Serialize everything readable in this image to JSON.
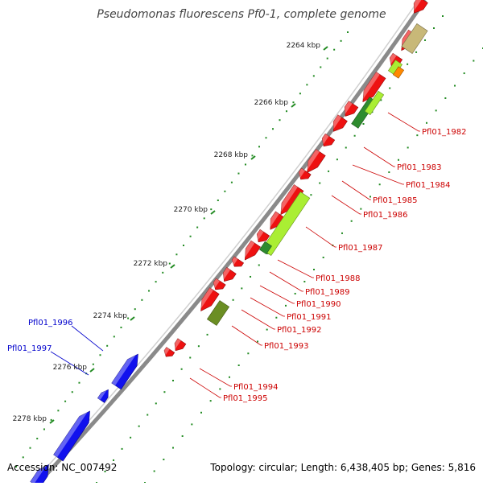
{
  "title": "Pseudomonas fluorescens Pf0-1, complete genome",
  "accession": "Accession: NC_007492",
  "topology": "Topology: circular; Length: 6,438,405 bp; Genes: 5,816",
  "colors": {
    "cds": "#ee1111",
    "cds_blue": "#1111ee",
    "lightgreen": "#aaee33",
    "darkgreen": "#2e8b2e",
    "olive": "#6b8e23",
    "khaki": "#c8b878",
    "orange": "#ff8800",
    "label_red": "#cc0000",
    "label_blue": "#0000cc",
    "tick": "#228b22"
  },
  "ticks": [
    "2264 kbp",
    "2266 kbp",
    "2268 kbp",
    "2270 kbp",
    "2272 kbp",
    "2274 kbp",
    "2276 kbp",
    "2278 kbp"
  ],
  "gene_labels_red": [
    "Pfl01_1982",
    "Pfl01_1983",
    "Pfl01_1984",
    "Pfl01_1985",
    "Pfl01_1986",
    "Pfl01_1987",
    "Pfl01_1988",
    "Pfl01_1989",
    "Pfl01_1990",
    "Pfl01_1991",
    "Pfl01_1992",
    "Pfl01_1993",
    "Pfl01_1994",
    "Pfl01_1995"
  ],
  "gene_labels_blue": [
    "Pfl01_1996",
    "Pfl01_1997"
  ]
}
